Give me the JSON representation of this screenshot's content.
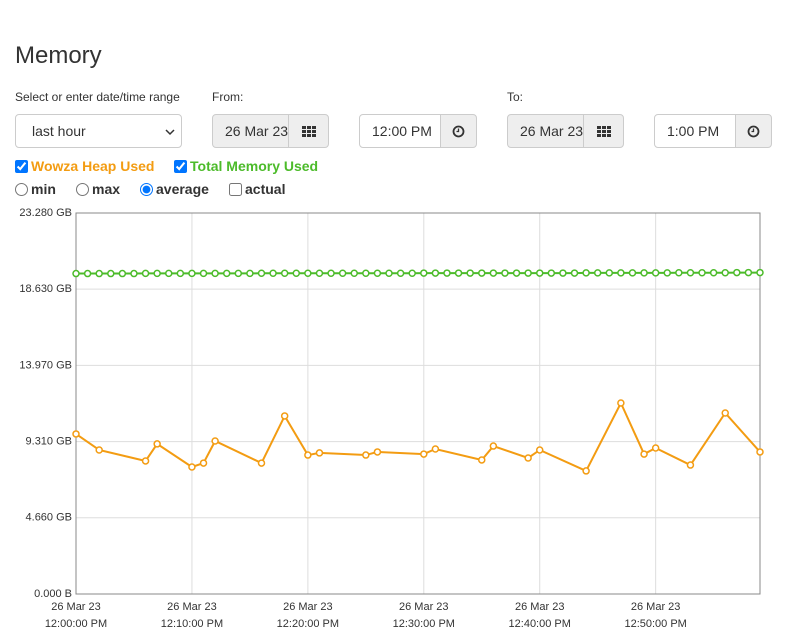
{
  "header": {
    "title": "Memory"
  },
  "range": {
    "label": "Select or enter date/time range",
    "selected": "last hour"
  },
  "from": {
    "label": "From:",
    "date": "26 Mar 23",
    "time": "12:00 PM"
  },
  "to": {
    "label": "To:",
    "date": "26 Mar 23",
    "time": "1:00 PM"
  },
  "series_toggles": [
    {
      "checked": true
    },
    {
      "checked": true
    }
  ],
  "aggregation": {
    "options": [
      "min",
      "max",
      "average"
    ],
    "selected": "average"
  },
  "actual": {
    "label": "actual",
    "checked": false
  },
  "chart_data": {
    "type": "line",
    "xlim": [
      "12:00:00",
      "12:59:00"
    ],
    "xticks": [
      {
        "value": "12:00:00",
        "label": [
          "26 Mar 23",
          "12:00:00 PM"
        ]
      },
      {
        "value": "12:10:00",
        "label": [
          "26 Mar 23",
          "12:10:00 PM"
        ]
      },
      {
        "value": "12:20:00",
        "label": [
          "26 Mar 23",
          "12:20:00 PM"
        ]
      },
      {
        "value": "12:30:00",
        "label": [
          "26 Mar 23",
          "12:30:00 PM"
        ]
      },
      {
        "value": "12:40:00",
        "label": [
          "26 Mar 23",
          "12:40:00 PM"
        ]
      },
      {
        "value": "12:50:00",
        "label": [
          "26 Mar 23",
          "12:50:00 PM"
        ]
      }
    ],
    "ylim": [
      0,
      23.28
    ],
    "yticks": [
      {
        "value": 0,
        "label": "0.000 B"
      },
      {
        "value": 4.66,
        "label": "4.660 GB"
      },
      {
        "value": 9.31,
        "label": "9.310 GB"
      },
      {
        "value": 13.97,
        "label": "13.970 GB"
      },
      {
        "value": 18.63,
        "label": "18.630 GB"
      },
      {
        "value": 23.28,
        "label": "23.280 GB"
      }
    ],
    "grid": true,
    "series": [
      {
        "name": "Wowza Heap Used",
        "color": "#f39c12",
        "x": [
          "12:00:00",
          "12:02:00",
          "12:06:00",
          "12:07:00",
          "12:10:00",
          "12:11:00",
          "12:12:00",
          "12:16:00",
          "12:18:00",
          "12:20:00",
          "12:21:00",
          "12:25:00",
          "12:26:00",
          "12:30:00",
          "12:31:00",
          "12:35:00",
          "12:36:00",
          "12:39:00",
          "12:40:00",
          "12:44:00",
          "12:47:00",
          "12:49:00",
          "12:50:00",
          "12:53:00",
          "12:56:00",
          "12:59:00"
        ],
        "values": [
          9.78,
          8.8,
          8.13,
          9.17,
          7.76,
          8.0,
          9.35,
          8.0,
          10.88,
          8.49,
          8.62,
          8.49,
          8.68,
          8.55,
          8.86,
          8.19,
          9.04,
          8.31,
          8.8,
          7.52,
          11.67,
          8.55,
          8.92,
          7.88,
          11.06,
          8.68
        ]
      },
      {
        "name": "Total Memory Used",
        "color": "#4cbb2a",
        "x": [
          "12:00:00",
          "12:01:00",
          "12:02:00",
          "12:03:00",
          "12:04:00",
          "12:05:00",
          "12:06:00",
          "12:07:00",
          "12:08:00",
          "12:09:00",
          "12:10:00",
          "12:11:00",
          "12:12:00",
          "12:13:00",
          "12:14:00",
          "12:15:00",
          "12:16:00",
          "12:17:00",
          "12:18:00",
          "12:19:00",
          "12:20:00",
          "12:21:00",
          "12:22:00",
          "12:23:00",
          "12:24:00",
          "12:25:00",
          "12:26:00",
          "12:27:00",
          "12:28:00",
          "12:29:00",
          "12:30:00",
          "12:31:00",
          "12:32:00",
          "12:33:00",
          "12:34:00",
          "12:35:00",
          "12:36:00",
          "12:37:00",
          "12:38:00",
          "12:39:00",
          "12:40:00",
          "12:41:00",
          "12:42:00",
          "12:43:00",
          "12:44:00",
          "12:45:00",
          "12:46:00",
          "12:47:00",
          "12:48:00",
          "12:49:00",
          "12:50:00",
          "12:51:00",
          "12:52:00",
          "12:53:00",
          "12:54:00",
          "12:55:00",
          "12:56:00",
          "12:57:00",
          "12:58:00",
          "12:59:00"
        ],
        "values": [
          19.58,
          19.58,
          19.58,
          19.58,
          19.58,
          19.58,
          19.59,
          19.59,
          19.59,
          19.59,
          19.59,
          19.59,
          19.59,
          19.59,
          19.59,
          19.59,
          19.6,
          19.6,
          19.6,
          19.6,
          19.6,
          19.6,
          19.6,
          19.6,
          19.6,
          19.6,
          19.6,
          19.6,
          19.6,
          19.6,
          19.61,
          19.61,
          19.61,
          19.61,
          19.61,
          19.61,
          19.61,
          19.61,
          19.61,
          19.61,
          19.61,
          19.61,
          19.61,
          19.61,
          19.62,
          19.62,
          19.62,
          19.62,
          19.62,
          19.62,
          19.62,
          19.62,
          19.63,
          19.63,
          19.63,
          19.63,
          19.63,
          19.64,
          19.64,
          19.64
        ]
      }
    ]
  }
}
